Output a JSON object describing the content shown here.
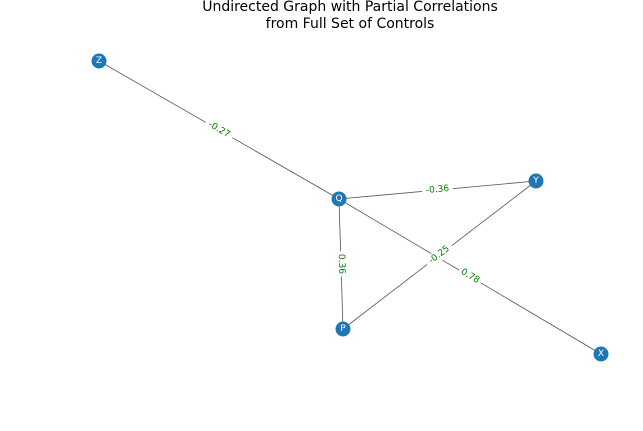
{
  "title": {
    "line1": "Undirected Graph with Partial Correlations",
    "line2": "from Full Set of Controls"
  },
  "colors": {
    "node": "#1f77b4",
    "node_label": "#ffffff",
    "edge": "#555555",
    "edge_label": "#008000"
  },
  "nodes": [
    {
      "id": "Z",
      "label": "Z"
    },
    {
      "id": "Q",
      "label": "Q"
    },
    {
      "id": "Y",
      "label": "Y"
    },
    {
      "id": "P",
      "label": "P"
    },
    {
      "id": "X",
      "label": "X"
    }
  ],
  "edges": [
    {
      "source": "Z",
      "target": "Q",
      "label": "-0.27"
    },
    {
      "source": "Q",
      "target": "Y",
      "label": "-0.36"
    },
    {
      "source": "Q",
      "target": "P",
      "label": "0.36"
    },
    {
      "source": "Q",
      "target": "X",
      "label": "0.78"
    },
    {
      "source": "P",
      "target": "Y",
      "label": "-0.25"
    }
  ]
}
